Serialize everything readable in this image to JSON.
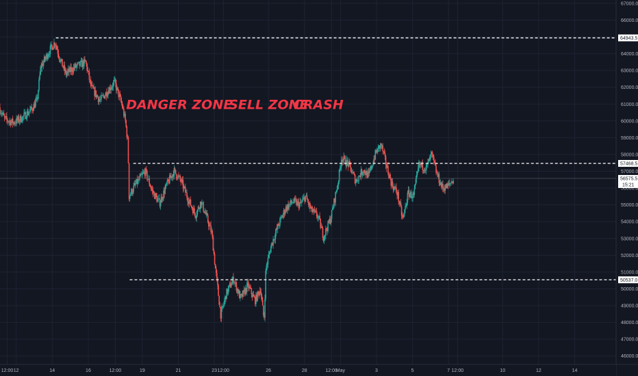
{
  "chart_data": {
    "type": "candlestick",
    "title": "",
    "ylim": [
      45500,
      67200
    ],
    "y_ticks": [
      46000,
      47000,
      48000,
      49000,
      50000,
      51000,
      52000,
      53000,
      54000,
      55000,
      56000,
      57000,
      58000,
      59000,
      60000,
      61000,
      62000,
      63000,
      64000,
      65000,
      66000,
      67000
    ],
    "y_tick_labels": [
      "46000.0",
      "47000.0",
      "48000.0",
      "49000.0",
      "50000.0",
      "51000.0",
      "52000.0",
      "53000.0",
      "54000.0",
      "55000.0",
      "56000.0",
      "57000.0",
      "58000.0",
      "59000.0",
      "60000.0",
      "61000.0",
      "62000.0",
      "63000.0",
      "64000.0",
      "65000.0",
      "66000.0",
      "67000.0"
    ],
    "x_ticks": [
      {
        "label": "12:00",
        "d": 12.5
      },
      {
        "label": "12",
        "d": 13
      },
      {
        "label": "14",
        "d": 15
      },
      {
        "label": "16",
        "d": 17
      },
      {
        "label": "12:00",
        "d": 18.5
      },
      {
        "label": "19",
        "d": 20
      },
      {
        "label": "21",
        "d": 22
      },
      {
        "label": "23",
        "d": 24
      },
      {
        "label": "12:00",
        "d": 24.5
      },
      {
        "label": "26",
        "d": 27
      },
      {
        "label": "28",
        "d": 29
      },
      {
        "label": "12:00",
        "d": 30.5
      },
      {
        "label": "May",
        "d": 31
      },
      {
        "label": "3",
        "d": 33
      },
      {
        "label": "5",
        "d": 35
      },
      {
        "label": "7",
        "d": 37
      },
      {
        "label": "12:00",
        "d": 37.5
      },
      {
        "label": "10",
        "d": 40
      },
      {
        "label": "12",
        "d": 42
      },
      {
        "label": "14",
        "d": 44
      }
    ],
    "x_range": [
      12.1,
      46.3
    ],
    "levels": [
      {
        "value": 64943.5,
        "label": "64943.5",
        "from_d": 15.2
      },
      {
        "value": 57468.5,
        "label": "57468.5",
        "from_d": 19.5
      },
      {
        "value": 50537.0,
        "label": "50537.0",
        "from_d": 19.3
      }
    ],
    "current_price": {
      "value": 56575.5,
      "label": "56575.5",
      "countdown": "15:21"
    },
    "annotations": [
      {
        "text": "DANGER ZONE",
        "d": 19.1,
        "y": 61000
      },
      {
        "text": "SELL ZONE",
        "d": 24.8,
        "y": 61000
      },
      {
        "text": "CRASH",
        "d": 28.4,
        "y": 61000
      }
    ],
    "anchors": [
      [
        12.1,
        60800
      ],
      [
        12.4,
        60100
      ],
      [
        12.9,
        59900
      ],
      [
        13.4,
        60200
      ],
      [
        13.9,
        60700
      ],
      [
        14.2,
        61200
      ],
      [
        14.4,
        63200
      ],
      [
        14.9,
        64200
      ],
      [
        15.2,
        64700
      ],
      [
        15.5,
        63600
      ],
      [
        15.8,
        62800
      ],
      [
        16.3,
        63200
      ],
      [
        16.9,
        63500
      ],
      [
        17.2,
        62000
      ],
      [
        17.7,
        61200
      ],
      [
        18.2,
        61900
      ],
      [
        18.5,
        62300
      ],
      [
        18.9,
        61000
      ],
      [
        19.1,
        60000
      ],
      [
        19.25,
        58600
      ],
      [
        19.3,
        55500
      ],
      [
        19.6,
        56100
      ],
      [
        20.2,
        57000
      ],
      [
        20.6,
        55800
      ],
      [
        21.0,
        55100
      ],
      [
        21.4,
        56200
      ],
      [
        21.8,
        57000
      ],
      [
        22.2,
        56400
      ],
      [
        22.6,
        55300
      ],
      [
        23.0,
        54400
      ],
      [
        23.3,
        55200
      ],
      [
        23.6,
        54300
      ],
      [
        23.9,
        53300
      ],
      [
        24.1,
        51200
      ],
      [
        24.4,
        48400
      ],
      [
        24.7,
        49700
      ],
      [
        25.1,
        50600
      ],
      [
        25.5,
        49400
      ],
      [
        25.9,
        50200
      ],
      [
        26.3,
        49300
      ],
      [
        26.6,
        50000
      ],
      [
        26.8,
        48100
      ],
      [
        26.9,
        51200
      ],
      [
        27.2,
        52600
      ],
      [
        27.6,
        53800
      ],
      [
        28.0,
        54800
      ],
      [
        28.4,
        55200
      ],
      [
        28.8,
        55000
      ],
      [
        29.1,
        55500
      ],
      [
        29.4,
        54700
      ],
      [
        29.8,
        54300
      ],
      [
        30.1,
        53100
      ],
      [
        30.5,
        54200
      ],
      [
        30.9,
        56300
      ],
      [
        31.1,
        57800
      ],
      [
        31.5,
        57400
      ],
      [
        31.9,
        56400
      ],
      [
        32.3,
        57100
      ],
      [
        32.6,
        56700
      ],
      [
        33.0,
        58100
      ],
      [
        33.3,
        58600
      ],
      [
        33.6,
        57300
      ],
      [
        33.9,
        56200
      ],
      [
        34.2,
        55700
      ],
      [
        34.5,
        54100
      ],
      [
        34.8,
        55700
      ],
      [
        35.1,
        55500
      ],
      [
        35.4,
        57400
      ],
      [
        35.8,
        57200
      ],
      [
        36.1,
        58000
      ],
      [
        36.4,
        56800
      ],
      [
        36.7,
        56000
      ],
      [
        37.0,
        56100
      ],
      [
        37.3,
        56500
      ]
    ]
  }
}
